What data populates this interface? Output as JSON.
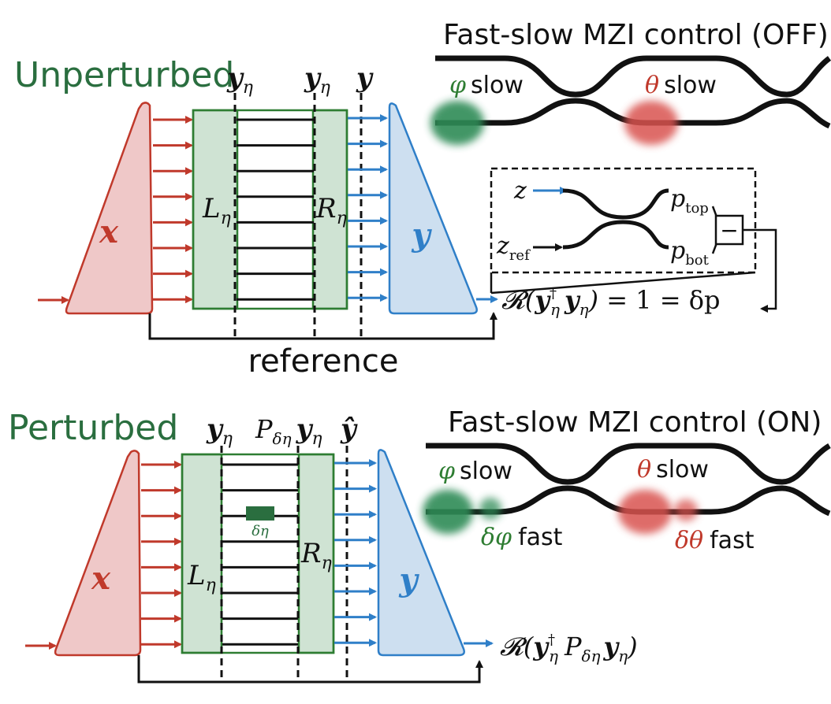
{
  "colors": {
    "red": "#c0392b",
    "red_fill": "#efc8c8",
    "green": "#2e7d32",
    "green_dark": "#2a6e3f",
    "green_fill": "#cfe3d3",
    "blue": "#2f7fc8",
    "blue_fill": "#cddff0",
    "black": "#111111",
    "green_blob": "#2e8b57",
    "red_blob": "#d9534f"
  },
  "top": {
    "title": "Unperturbed",
    "mzi_title": "Fast-slow MZI control (OFF)",
    "phi_label": "φ",
    "theta_label": "θ",
    "slow": "slow",
    "col_labels": [
      "y",
      "y",
      "y"
    ],
    "eta_sub": "η",
    "block_x": "x",
    "block_y": "y",
    "L": "L",
    "R": "R",
    "reference": "reference",
    "inset": {
      "z": "z",
      "z_ref": "z",
      "ref_sub": "ref",
      "p_top": "p",
      "top_sub": "top",
      "p_bot": "p",
      "bot_sub": "bot",
      "minus": "−"
    },
    "equation": "𝓡(𝒚η† 𝒚η) = 1 = δp",
    "eq_parts": {
      "R": "𝓡(",
      "y1": "y",
      "dagger": "†",
      "y2": "y",
      "close": ")",
      "rest": " = 1 = δp"
    }
  },
  "bottom": {
    "title": "Perturbed",
    "mzi_title": "Fast-slow MZI control (ON)",
    "phi_label": "φ",
    "theta_label": "θ",
    "slow": "slow",
    "dphi": "δφ",
    "dtheta": "δθ",
    "fast": "fast",
    "col_y1": "y",
    "col_P": "P",
    "col_P_sub": "δη",
    "col_y2": "y",
    "col_yhat": "ŷ",
    "delta_eta": "δη",
    "block_x": "x",
    "block_y": "y",
    "L": "L",
    "R": "R",
    "eq_parts": {
      "R": "𝓡(",
      "y1": "y",
      "dagger": "†",
      "P": "P",
      "P_sub": "δη",
      "y2": "y",
      "close": ")"
    }
  }
}
